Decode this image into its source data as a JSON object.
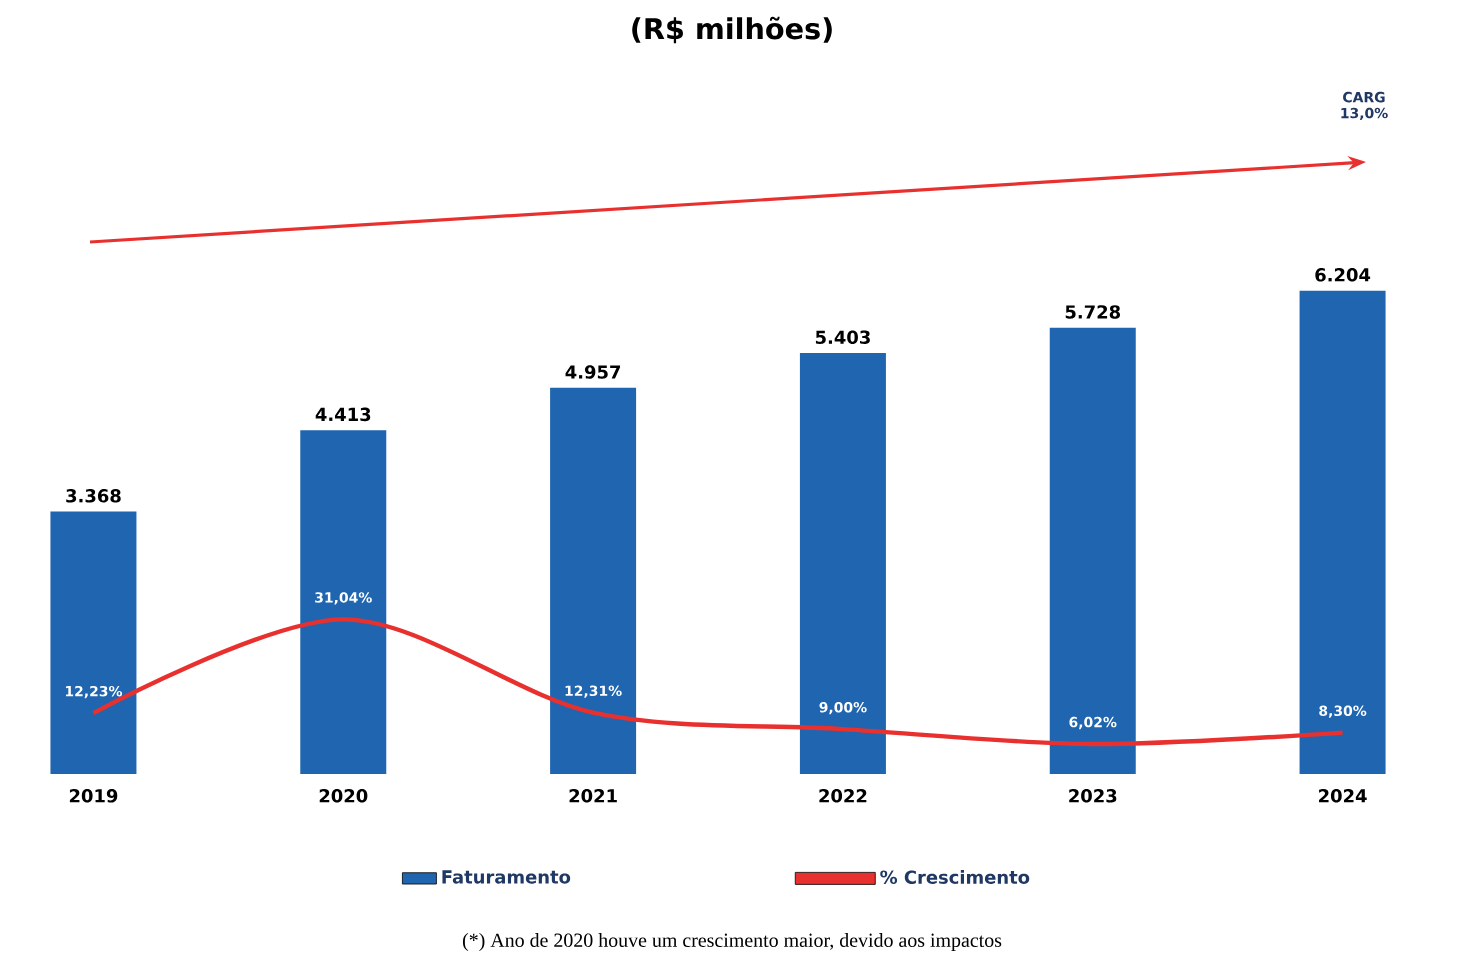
{
  "chart_data": {
    "type": "bar",
    "title": "(R$ milhões)",
    "categories": [
      "2019",
      "2020",
      "2021",
      "2022",
      "2023",
      "2024"
    ],
    "series": [
      {
        "name": "Faturamento",
        "color": "#1f65b0",
        "values": [
          3368,
          4413,
          4957,
          5403,
          5728,
          6204
        ],
        "value_labels": [
          "3.368",
          "4.413",
          "4.957",
          "5.403",
          "5.728",
          "6.204"
        ]
      },
      {
        "name": "% Crescimento",
        "type": "line",
        "axis": "y2",
        "color": "#e8312e",
        "values": [
          12.23,
          31.04,
          12.31,
          9.0,
          6.02,
          8.3
        ],
        "value_labels": [
          "12,23%",
          "31,04%",
          "12,31%",
          "9,00%",
          "6,02%",
          "8,30%"
        ]
      }
    ],
    "annotations": [
      "CARG 13,0%",
      "(*) Ano de 2020 houve um crescimento maior, devido aos impactos"
    ],
    "legend": "bottom"
  }
}
